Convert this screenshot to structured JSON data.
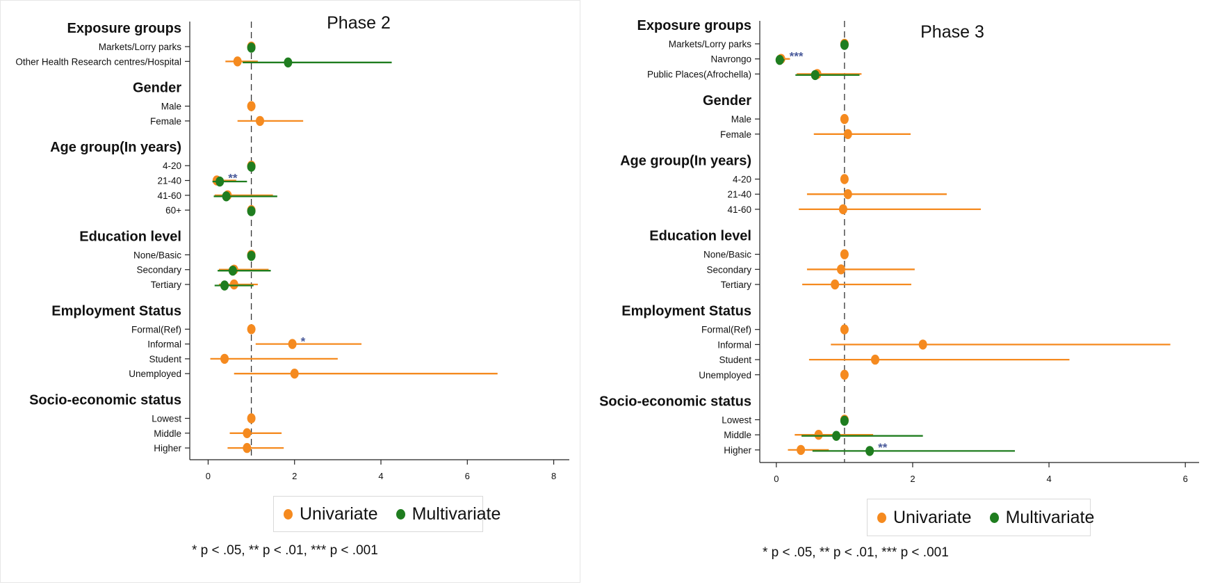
{
  "colors": {
    "univariate": "#f58a1f",
    "multivariate": "#1f7d1f",
    "axis": "#222222",
    "star": "#4a5a9a"
  },
  "legend": {
    "univariate_label": "Univariate",
    "multivariate_label": "Multivariate"
  },
  "footnote": "* p < .05, ** p < .01, *** p < .001",
  "chart_data": [
    {
      "type": "forest",
      "title": "Phase 2",
      "xlim": [
        -0.2,
        8.2
      ],
      "xticks": [
        "0",
        "2",
        "4",
        "6",
        "8"
      ],
      "reference_line": 1,
      "groups": [
        {
          "heading": "Exposure groups",
          "rows": [
            {
              "label": "Markets/Lorry parks",
              "uni": {
                "est": 1
              },
              "multi": {
                "est": 1
              }
            },
            {
              "label": "Other Health Research centres/Hospital",
              "uni": {
                "est": 0.68,
                "lo": 0.4,
                "hi": 1.15
              },
              "multi": {
                "est": 1.85,
                "lo": 0.8,
                "hi": 4.25
              }
            }
          ]
        },
        {
          "heading": "Gender",
          "rows": [
            {
              "label": "Male",
              "uni": {
                "est": 1
              }
            },
            {
              "label": "Female",
              "uni": {
                "est": 1.2,
                "lo": 0.68,
                "hi": 2.2
              }
            }
          ]
        },
        {
          "heading": "Age group(In years)",
          "rows": [
            {
              "label": "4-20",
              "uni": {
                "est": 1
              },
              "multi": {
                "est": 1
              }
            },
            {
              "label": "21-40",
              "uni": {
                "est": 0.2,
                "lo": 0.12,
                "hi": 0.65
              },
              "multi": {
                "est": 0.27,
                "lo": 0.1,
                "hi": 0.9
              },
              "stars": "**"
            },
            {
              "label": "41-60",
              "uni": {
                "est": 0.45,
                "lo": 0.15,
                "hi": 1.5
              },
              "multi": {
                "est": 0.42,
                "lo": 0.13,
                "hi": 1.6
              }
            },
            {
              "label": "60+",
              "uni": {
                "est": 1
              },
              "multi": {
                "est": 1
              }
            }
          ]
        },
        {
          "heading": "Education level",
          "rows": [
            {
              "label": "None/Basic",
              "uni": {
                "est": 1
              },
              "multi": {
                "est": 1
              }
            },
            {
              "label": "Secondary",
              "uni": {
                "est": 0.6,
                "lo": 0.25,
                "hi": 1.4
              },
              "multi": {
                "est": 0.57,
                "lo": 0.22,
                "hi": 1.45
              }
            },
            {
              "label": "Tertiary",
              "uni": {
                "est": 0.6,
                "lo": 0.25,
                "hi": 1.15
              },
              "multi": {
                "est": 0.38,
                "lo": 0.15,
                "hi": 1.05
              }
            }
          ]
        },
        {
          "heading": "Employment Status",
          "rows": [
            {
              "label": "Formal(Ref)",
              "uni": {
                "est": 1
              }
            },
            {
              "label": "Informal",
              "uni": {
                "est": 1.95,
                "lo": 1.1,
                "hi": 3.55
              },
              "stars": "*"
            },
            {
              "label": "Student",
              "uni": {
                "est": 0.38,
                "lo": 0.05,
                "hi": 3
              }
            },
            {
              "label": "Unemployed",
              "uni": {
                "est": 2,
                "lo": 0.6,
                "hi": 6.7
              }
            }
          ]
        },
        {
          "heading": "Socio-economic status",
          "rows": [
            {
              "label": "Lowest",
              "uni": {
                "est": 1
              }
            },
            {
              "label": "Middle",
              "uni": {
                "est": 0.9,
                "lo": 0.5,
                "hi": 1.7
              }
            },
            {
              "label": "Higher",
              "uni": {
                "est": 0.9,
                "lo": 0.45,
                "hi": 1.75
              }
            }
          ]
        }
      ]
    },
    {
      "type": "forest",
      "title": "Phase 3",
      "xlim": [
        -0.1,
        6.1
      ],
      "xticks": [
        "0",
        "2",
        "4",
        "6"
      ],
      "reference_line": 1,
      "groups": [
        {
          "heading": "Exposure groups",
          "rows": [
            {
              "label": "Markets/Lorry parks",
              "uni": {
                "est": 1
              },
              "multi": {
                "est": 1
              }
            },
            {
              "label": "Navrongo",
              "uni": {
                "est": 0.07,
                "lo": 0.03,
                "hi": 0.2
              },
              "multi": {
                "est": 0.05,
                "lo": 0.02,
                "hi": 0.12
              },
              "stars": "***"
            },
            {
              "label": "Public Places(Afrochella)",
              "uni": {
                "est": 0.6,
                "lo": 0.3,
                "hi": 1.25
              },
              "multi": {
                "est": 0.57,
                "lo": 0.28,
                "hi": 1.22
              }
            }
          ]
        },
        {
          "heading": "Gender",
          "rows": [
            {
              "label": "Male",
              "uni": {
                "est": 1
              }
            },
            {
              "label": "Female",
              "uni": {
                "est": 1.05,
                "lo": 0.55,
                "hi": 1.97
              }
            }
          ]
        },
        {
          "heading": "Age group(In years)",
          "rows": [
            {
              "label": "4-20",
              "uni": {
                "est": 1
              }
            },
            {
              "label": "21-40",
              "uni": {
                "est": 1.05,
                "lo": 0.45,
                "hi": 2.5
              }
            },
            {
              "label": "41-60",
              "uni": {
                "est": 0.98,
                "lo": 0.33,
                "hi": 3
              }
            }
          ]
        },
        {
          "heading": "Education level",
          "rows": [
            {
              "label": "None/Basic",
              "uni": {
                "est": 1
              }
            },
            {
              "label": "Secondary",
              "uni": {
                "est": 0.95,
                "lo": 0.45,
                "hi": 2.03
              }
            },
            {
              "label": "Tertiary",
              "uni": {
                "est": 0.86,
                "lo": 0.38,
                "hi": 1.98
              }
            }
          ]
        },
        {
          "heading": "Employment Status",
          "rows": [
            {
              "label": "Formal(Ref)",
              "uni": {
                "est": 1
              }
            },
            {
              "label": "Informal",
              "uni": {
                "est": 2.15,
                "lo": 0.8,
                "hi": 5.78
              }
            },
            {
              "label": "Student",
              "uni": {
                "est": 1.45,
                "lo": 0.48,
                "hi": 4.3
              }
            },
            {
              "label": "Unemployed",
              "uni": {
                "est": 1
              }
            }
          ]
        },
        {
          "heading": "Socio-economic status",
          "rows": [
            {
              "label": "Lowest",
              "uni": {
                "est": 1
              },
              "multi": {
                "est": 1
              }
            },
            {
              "label": "Middle",
              "uni": {
                "est": 0.62,
                "lo": 0.27,
                "hi": 1.42
              },
              "multi": {
                "est": 0.88,
                "lo": 0.37,
                "hi": 2.15
              }
            },
            {
              "label": "Higher",
              "uni": {
                "est": 0.36,
                "lo": 0.17,
                "hi": 0.77
              },
              "multi": {
                "est": 1.37,
                "lo": 0.53,
                "hi": 3.5
              },
              "stars": "**"
            }
          ]
        }
      ]
    }
  ]
}
